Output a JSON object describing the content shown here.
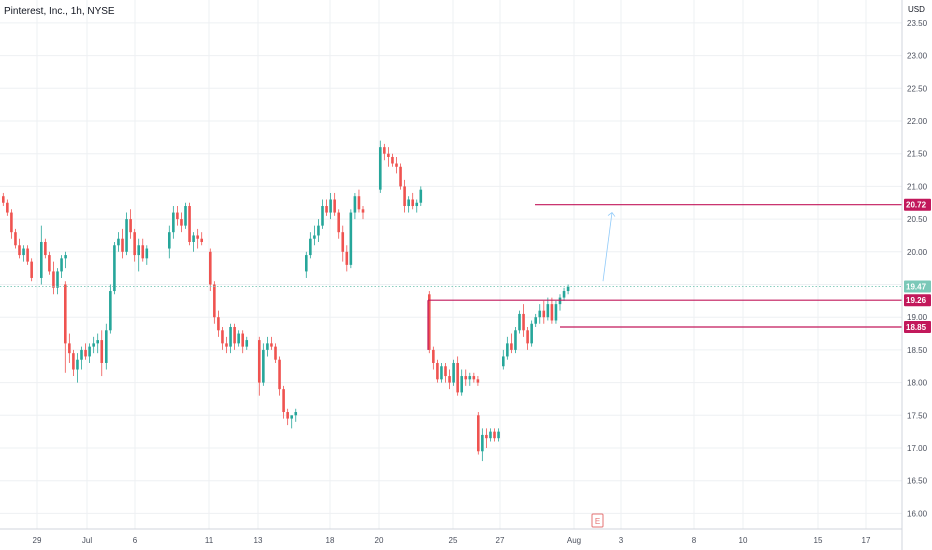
{
  "header": {
    "symbol_line": "Pinterest, Inc., 1h, NYSE",
    "currency": "USD"
  },
  "chart_data": {
    "type": "candlestick",
    "title": "Pinterest, Inc., 1h, NYSE",
    "ylabel": "USD",
    "ylim": [
      15.8,
      23.7
    ],
    "y_ticks": [
      "16.00",
      "16.50",
      "17.00",
      "17.50",
      "18.00",
      "18.50",
      "19.00",
      "19.50",
      "20.00",
      "20.50",
      "21.00",
      "21.50",
      "22.00",
      "22.50",
      "23.00",
      "23.50"
    ],
    "x_ticks": [
      "29",
      "Jul",
      "6",
      "11",
      "13",
      "18",
      "20",
      "25",
      "27",
      "Aug",
      "3",
      "8",
      "10",
      "15",
      "17"
    ],
    "price_labels": [
      {
        "text": "20.72",
        "value": 20.72,
        "color": "#c2185b"
      },
      {
        "text": "19.47",
        "value": 19.47,
        "color": "#7bc8b8"
      },
      {
        "text": "19.26",
        "value": 19.26,
        "color": "#c2185b"
      },
      {
        "text": "18.85",
        "value": 18.85,
        "color": "#c2185b"
      }
    ],
    "horizontal_lines": [
      {
        "value": 20.72,
        "from_label": "Jul 31 later",
        "color": "#c2185b"
      },
      {
        "value": 19.26,
        "color": "#c2185b"
      },
      {
        "value": 18.85,
        "color": "#c2185b"
      }
    ],
    "current_price": 19.47,
    "earnings_marker": "E",
    "projection_arrow": {
      "from": 19.55,
      "to": 20.6
    },
    "colors": {
      "up": "#26a69a",
      "down": "#ef5350",
      "grid": "#eef0f3",
      "level": "#c2185b"
    },
    "candles": [
      [
        20.85,
        20.9,
        20.7,
        20.75
      ],
      [
        20.75,
        20.8,
        20.55,
        20.6
      ],
      [
        20.6,
        20.65,
        20.2,
        20.3
      ],
      [
        20.3,
        20.35,
        20.05,
        20.1
      ],
      [
        20.1,
        20.2,
        19.9,
        19.95
      ],
      [
        19.95,
        20.1,
        19.85,
        20.05
      ],
      [
        20.05,
        20.1,
        19.8,
        19.85
      ],
      [
        19.85,
        19.9,
        19.55,
        19.6
      ],
      [
        19.6,
        20.4,
        19.5,
        20.15
      ],
      [
        20.15,
        20.2,
        19.9,
        19.95
      ],
      [
        19.95,
        20.0,
        19.65,
        19.7
      ],
      [
        19.7,
        19.85,
        19.35,
        19.45
      ],
      [
        19.45,
        19.75,
        19.35,
        19.7
      ],
      [
        19.7,
        19.95,
        19.6,
        19.9
      ],
      [
        19.9,
        20.0,
        19.75,
        19.95
      ],
      [
        19.5,
        19.55,
        18.15,
        18.6
      ],
      [
        18.6,
        18.75,
        18.3,
        18.45
      ],
      [
        18.45,
        18.5,
        18.1,
        18.2
      ],
      [
        18.2,
        18.45,
        18.0,
        18.35
      ],
      [
        18.35,
        18.55,
        18.2,
        18.5
      ],
      [
        18.5,
        18.6,
        18.35,
        18.4
      ],
      [
        18.4,
        18.6,
        18.3,
        18.55
      ],
      [
        18.55,
        18.7,
        18.45,
        18.6
      ],
      [
        18.6,
        18.75,
        18.45,
        18.65
      ],
      [
        18.65,
        18.8,
        18.1,
        18.3
      ],
      [
        18.3,
        18.9,
        18.2,
        18.8
      ],
      [
        18.8,
        19.5,
        18.75,
        19.4
      ],
      [
        19.4,
        20.15,
        19.35,
        20.1
      ],
      [
        20.1,
        20.3,
        20.0,
        20.2
      ],
      [
        20.2,
        20.35,
        19.9,
        20.0
      ],
      [
        20.0,
        20.6,
        19.95,
        20.5
      ],
      [
        20.5,
        20.65,
        20.2,
        20.3
      ],
      [
        20.3,
        20.35,
        19.85,
        19.95
      ],
      [
        19.95,
        20.2,
        19.7,
        20.1
      ],
      [
        20.1,
        20.2,
        19.85,
        19.9
      ],
      [
        19.9,
        20.1,
        19.8,
        20.05
      ],
      [
        20.05,
        20.4,
        19.9,
        20.3
      ],
      [
        20.3,
        20.7,
        20.2,
        20.6
      ],
      [
        20.6,
        20.7,
        20.4,
        20.5
      ],
      [
        20.5,
        20.6,
        20.3,
        20.4
      ],
      [
        20.4,
        20.75,
        20.35,
        20.7
      ],
      [
        20.7,
        20.75,
        20.1,
        20.15
      ],
      [
        20.15,
        20.3,
        20.0,
        20.25
      ],
      [
        20.25,
        20.35,
        20.05,
        20.2
      ],
      [
        20.2,
        20.3,
        20.1,
        20.15
      ],
      [
        20.0,
        20.05,
        19.4,
        19.5
      ],
      [
        19.5,
        19.55,
        18.9,
        19.0
      ],
      [
        19.0,
        19.1,
        18.7,
        18.8
      ],
      [
        18.8,
        18.85,
        18.5,
        18.6
      ],
      [
        18.6,
        18.7,
        18.45,
        18.55
      ],
      [
        18.55,
        18.9,
        18.45,
        18.85
      ],
      [
        18.85,
        18.9,
        18.5,
        18.6
      ],
      [
        18.6,
        18.8,
        18.55,
        18.75
      ],
      [
        18.75,
        18.8,
        18.45,
        18.55
      ],
      [
        18.55,
        18.7,
        18.5,
        18.65
      ],
      [
        18.65,
        18.7,
        17.8,
        18.0
      ],
      [
        18.0,
        18.6,
        17.95,
        18.5
      ],
      [
        18.5,
        18.7,
        18.4,
        18.6
      ],
      [
        18.6,
        18.7,
        18.5,
        18.55
      ],
      [
        18.55,
        18.6,
        18.3,
        18.35
      ],
      [
        18.35,
        18.4,
        17.8,
        17.9
      ],
      [
        17.9,
        17.95,
        17.45,
        17.55
      ],
      [
        17.55,
        17.6,
        17.35,
        17.45
      ],
      [
        17.45,
        17.5,
        17.3,
        17.5
      ],
      [
        17.5,
        17.6,
        17.4,
        17.55
      ],
      [
        19.7,
        20.0,
        19.6,
        19.95
      ],
      [
        19.95,
        20.3,
        19.9,
        20.2
      ],
      [
        20.2,
        20.4,
        20.1,
        20.25
      ],
      [
        20.25,
        20.5,
        20.15,
        20.4
      ],
      [
        20.4,
        20.8,
        20.35,
        20.7
      ],
      [
        20.7,
        20.8,
        20.55,
        20.6
      ],
      [
        20.6,
        20.9,
        20.5,
        20.8
      ],
      [
        20.8,
        20.9,
        20.55,
        20.6
      ],
      [
        20.6,
        20.65,
        20.2,
        20.3
      ],
      [
        20.3,
        20.4,
        19.85,
        20.0
      ],
      [
        20.0,
        20.1,
        19.7,
        19.8
      ],
      [
        19.8,
        20.65,
        19.75,
        20.6
      ],
      [
        20.6,
        20.9,
        20.5,
        20.85
      ],
      [
        20.85,
        20.95,
        20.6,
        20.65
      ],
      [
        20.65,
        20.7,
        20.5,
        20.6
      ],
      [
        20.95,
        21.7,
        20.9,
        21.6
      ],
      [
        21.6,
        21.65,
        21.4,
        21.5
      ],
      [
        21.5,
        21.6,
        21.3,
        21.45
      ],
      [
        21.45,
        21.5,
        21.3,
        21.35
      ],
      [
        21.35,
        21.45,
        21.2,
        21.3
      ],
      [
        21.3,
        21.35,
        20.95,
        21.0
      ],
      [
        21.0,
        21.1,
        20.6,
        20.7
      ],
      [
        20.7,
        20.85,
        20.6,
        20.8
      ],
      [
        20.8,
        20.9,
        20.65,
        20.7
      ],
      [
        20.7,
        20.8,
        20.6,
        20.75
      ],
      [
        20.75,
        21.0,
        20.7,
        20.95
      ],
      [
        19.35,
        19.4,
        18.45,
        18.5
      ],
      [
        18.5,
        18.55,
        18.2,
        18.3
      ],
      [
        18.3,
        18.35,
        18.0,
        18.05
      ],
      [
        18.05,
        18.3,
        18.0,
        18.25
      ],
      [
        18.25,
        18.3,
        18.0,
        18.1
      ],
      [
        18.1,
        18.2,
        17.9,
        18.0
      ],
      [
        18.0,
        18.35,
        17.95,
        18.3
      ],
      [
        18.3,
        18.4,
        17.8,
        17.85
      ],
      [
        17.85,
        18.2,
        17.8,
        18.1
      ],
      [
        18.1,
        18.2,
        17.95,
        18.05
      ],
      [
        18.05,
        18.15,
        17.95,
        18.1
      ],
      [
        18.1,
        18.15,
        18.0,
        18.05
      ],
      [
        18.05,
        18.1,
        17.95,
        18.0
      ],
      [
        17.5,
        17.55,
        16.9,
        16.95
      ],
      [
        16.95,
        17.3,
        16.8,
        17.2
      ],
      [
        17.2,
        17.3,
        17.0,
        17.15
      ],
      [
        17.15,
        17.3,
        17.1,
        17.25
      ],
      [
        17.25,
        17.3,
        17.1,
        17.15
      ],
      [
        17.15,
        17.3,
        17.1,
        17.25
      ],
      [
        18.25,
        18.5,
        18.2,
        18.4
      ],
      [
        18.4,
        18.7,
        18.35,
        18.6
      ],
      [
        18.6,
        18.75,
        18.45,
        18.5
      ],
      [
        18.5,
        18.85,
        18.45,
        18.8
      ],
      [
        18.8,
        19.1,
        18.75,
        19.05
      ],
      [
        19.05,
        19.2,
        18.7,
        18.8
      ],
      [
        18.8,
        18.85,
        18.5,
        18.6
      ],
      [
        18.6,
        18.95,
        18.55,
        18.9
      ],
      [
        18.9,
        19.05,
        18.85,
        19.0
      ],
      [
        19.0,
        19.2,
        18.9,
        19.1
      ],
      [
        19.1,
        19.25,
        18.9,
        19.0
      ],
      [
        19.0,
        19.3,
        18.95,
        19.2
      ],
      [
        19.2,
        19.3,
        18.9,
        18.95
      ],
      [
        18.95,
        19.25,
        18.9,
        19.2
      ],
      [
        19.2,
        19.35,
        19.1,
        19.3
      ],
      [
        19.3,
        19.45,
        19.25,
        19.4
      ],
      [
        19.4,
        19.5,
        19.35,
        19.47
      ]
    ]
  }
}
